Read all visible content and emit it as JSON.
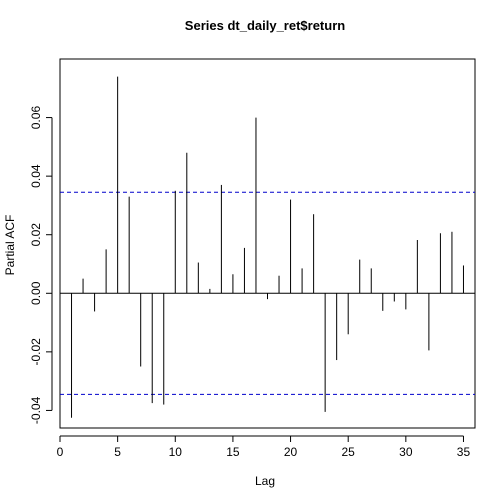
{
  "chart_data": {
    "type": "bar",
    "title": "Series  dt_daily_ret$return",
    "xlabel": "Lag",
    "ylabel": "Partial ACF",
    "xlim": [
      0,
      36
    ],
    "ylim": [
      -0.046,
      0.08
    ],
    "xticks": [
      0,
      5,
      10,
      15,
      20,
      25,
      30,
      35
    ],
    "xtick_labels": [
      "0",
      "5",
      "10",
      "15",
      "20",
      "25",
      "30",
      "35"
    ],
    "yticks": [
      -0.04,
      -0.02,
      0.0,
      0.02,
      0.04,
      0.06
    ],
    "ytick_labels": [
      "-0.04",
      "-0.02",
      "0.00",
      "0.02",
      "0.04",
      "0.06"
    ],
    "confidence_band": 0.0345,
    "confidence_band_color": "#0000cc",
    "series": [
      {
        "lags": [
          1,
          2,
          3,
          4,
          5,
          6,
          7,
          8,
          9,
          10,
          11,
          12,
          13,
          14,
          15,
          16,
          17,
          18,
          19,
          20,
          21,
          22,
          23,
          24,
          25,
          26,
          27,
          28,
          29,
          30,
          31,
          32,
          33,
          34,
          35
        ],
        "values": [
          -0.0425,
          0.005,
          -0.0062,
          0.015,
          0.074,
          0.033,
          -0.025,
          -0.0375,
          -0.038,
          0.035,
          0.048,
          0.0105,
          0.0015,
          0.037,
          0.0065,
          0.0155,
          0.06,
          -0.002,
          0.006,
          0.032,
          0.0085,
          0.027,
          -0.0405,
          -0.0228,
          -0.014,
          0.0115,
          0.0085,
          -0.006,
          -0.0028,
          -0.0055,
          0.0182,
          -0.0195,
          0.0205,
          0.021,
          0.0095
        ]
      }
    ]
  }
}
